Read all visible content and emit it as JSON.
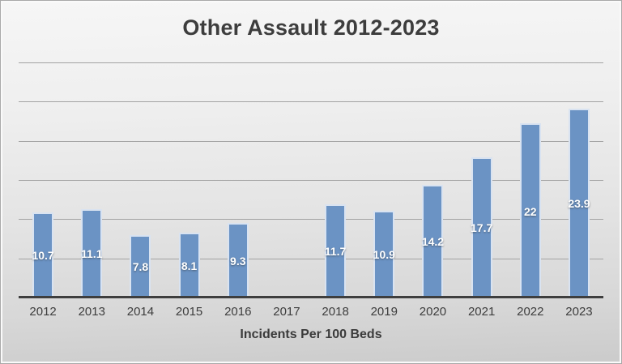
{
  "chart_data": {
    "type": "bar",
    "title": "Other Assault 2012-2023",
    "xlabel": "Incidents Per 100 Beds",
    "ylabel": "",
    "categories": [
      "2012",
      "2013",
      "2014",
      "2015",
      "2016",
      "2017",
      "2018",
      "2019",
      "2020",
      "2021",
      "2022",
      "2023"
    ],
    "values": [
      10.7,
      11.1,
      7.8,
      8.1,
      9.3,
      null,
      11.7,
      10.9,
      14.2,
      17.7,
      22,
      23.9
    ],
    "value_labels": [
      "10.7",
      "11.1",
      "7.8",
      "8.1",
      "9.3",
      null,
      "11.7",
      "10.9",
      "14.2",
      "17.7",
      "22",
      "23.9"
    ],
    "ylim": [
      0,
      30
    ],
    "gridline_step": 5,
    "grid": true,
    "legend_position": "none",
    "colors": {
      "bar_fill": "#6b93c4",
      "bar_border": "#d9e3f1",
      "gridline": "#a3a3a3",
      "axis_line": "#3e3e3e",
      "tick_text": "#3d3d3d",
      "title_text": "#3d3d3d",
      "data_label_text": "#ffffff",
      "background_top": "#f6f6f6",
      "background_bottom": "#cbcbcb"
    }
  }
}
